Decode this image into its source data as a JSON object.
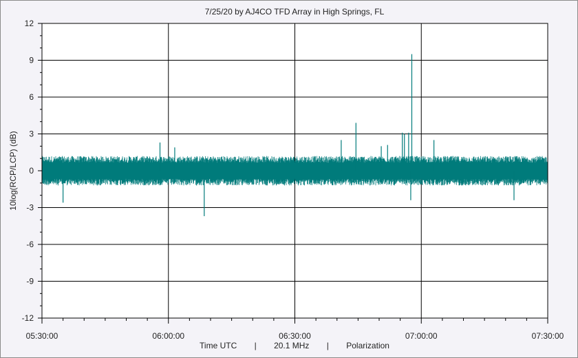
{
  "chart_data": {
    "type": "line",
    "title": "7/25/20  by  AJ4CO TFD Array  in  High Springs, FL",
    "ylabel": "10log(RCP/LCP) (dB)",
    "footer": {
      "xlabel": "Time UTC",
      "frequency": "20.1 MHz",
      "mode": "Polarization",
      "separator": "|"
    },
    "ylim": [
      -12,
      12
    ],
    "yticks": [
      "12",
      "9",
      "6",
      "3",
      "0",
      "-3",
      "-6",
      "-9",
      "-12"
    ],
    "xticks": [
      "05:30:00",
      "06:00:00",
      "06:30:00",
      "07:00:00",
      "07:30:00"
    ],
    "grid": true,
    "series": [
      {
        "color": "#007b7b",
        "baseline": 0,
        "noise_band_db": [
          -1.2,
          1.2
        ],
        "spikes": [
          {
            "time": "05:35:00",
            "value": -2.6
          },
          {
            "time": "05:58:00",
            "value": 2.3
          },
          {
            "time": "06:01:30",
            "value": 1.9
          },
          {
            "time": "06:08:30",
            "value": -3.7
          },
          {
            "time": "06:41:00",
            "value": 2.5
          },
          {
            "time": "06:44:30",
            "value": 3.9
          },
          {
            "time": "06:50:30",
            "value": 2.0
          },
          {
            "time": "06:52:00",
            "value": 2.1
          },
          {
            "time": "06:55:30",
            "value": 3.1
          },
          {
            "time": "06:56:00",
            "value": 3.0
          },
          {
            "time": "06:57:00",
            "value": 3.1
          },
          {
            "time": "06:57:45",
            "value": 9.5
          },
          {
            "time": "06:57:30",
            "value": -2.4
          },
          {
            "time": "07:03:00",
            "value": 2.5
          },
          {
            "time": "07:22:00",
            "value": -2.4
          }
        ]
      }
    ]
  }
}
